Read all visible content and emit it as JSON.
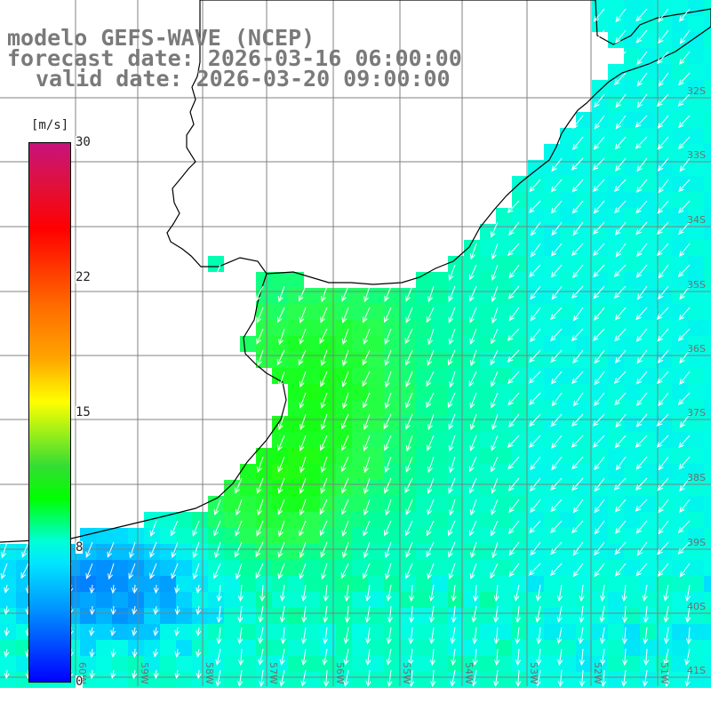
{
  "title": {
    "line1": "modelo GEFS-WAVE (NCEP)",
    "line2": "forecast date: 2026-03-16 06:00:00",
    "line3": "valid date: 2026-03-20 09:00:00"
  },
  "colorbar": {
    "unit": "[m/s]",
    "min": 0,
    "max": 30,
    "ticks": [
      "30",
      "22",
      "15",
      "8",
      "0"
    ]
  },
  "lat_labels": [
    "32S",
    "33S",
    "34S",
    "35S",
    "36S",
    "37S",
    "38S",
    "39S",
    "40S",
    "41S"
  ],
  "lon_labels": [
    "60W",
    "59W",
    "58W",
    "57W",
    "56W",
    "55W",
    "54W",
    "53W",
    "52W",
    "51W"
  ],
  "colors": {
    "land": "#ffffff",
    "coast": "#000000",
    "grid": "#808080",
    "arrow": "#ffffff",
    "title": "#7a7a7a"
  }
}
